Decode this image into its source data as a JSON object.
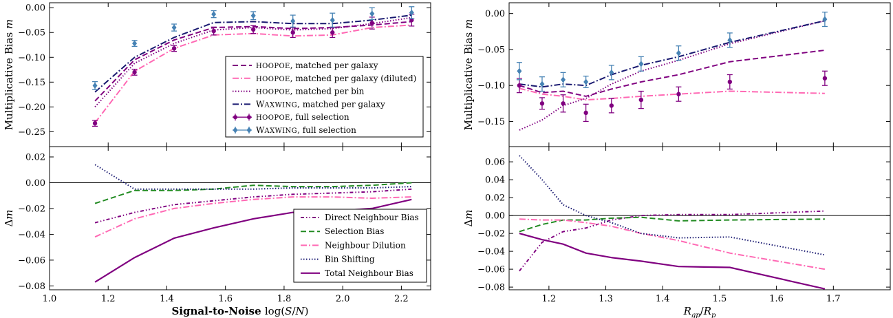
{
  "colors": {
    "dark_purple": "#800080",
    "pink": "#ff69b4",
    "green": "#228b22",
    "navy": "#191970",
    "steelblue": "#4682b4"
  },
  "chart_data": [
    {
      "type": "line",
      "panel": "top-left",
      "ylabel_text": "Multiplicative Bias ",
      "ylabel_var": "m",
      "xlim": [
        1.0,
        2.3
      ],
      "ylim": [
        -0.28,
        0.01
      ],
      "yticks": [
        0.0,
        -0.05,
        -0.1,
        -0.15,
        -0.2,
        -0.25
      ],
      "ytick_labels": [
        "0.00",
        "−0.05",
        "−0.10",
        "−0.15",
        "−0.20",
        "−0.25"
      ],
      "xticks": [
        1.0,
        1.2,
        1.4,
        1.6,
        1.8,
        2.0,
        2.2
      ],
      "legend_position": "right",
      "x": [
        1.155,
        1.29,
        1.425,
        1.56,
        1.695,
        1.83,
        1.965,
        2.1,
        2.235
      ],
      "series": [
        {
          "name": "HOOPOE, matched per galaxy",
          "name_sc": "hoopoe",
          "name_rest": ", matched per galaxy",
          "style": "dashed",
          "color": "#800080",
          "values": [
            -0.188,
            -0.105,
            -0.065,
            -0.04,
            -0.038,
            -0.042,
            -0.04,
            -0.035,
            -0.028
          ]
        },
        {
          "name": "HOOPOE, matched per galaxy (diluted)",
          "name_sc": "hoopoe",
          "name_rest": ", matched per galaxy (diluted)",
          "style": "dashdot",
          "color": "#ff69b4",
          "values": [
            -0.232,
            -0.128,
            -0.082,
            -0.055,
            -0.052,
            -0.057,
            -0.055,
            -0.04,
            -0.035
          ]
        },
        {
          "name": "HOOPOE, matched per bin",
          "name_sc": "hoopoe",
          "name_rest": ", matched per bin",
          "style": "dotted",
          "color": "#800080",
          "values": [
            -0.2,
            -0.112,
            -0.072,
            -0.045,
            -0.04,
            -0.045,
            -0.042,
            -0.032,
            -0.02
          ]
        },
        {
          "name": "WAXWING, matched per galaxy",
          "name_sc": "Waxwing",
          "name_rest": ", matched per galaxy",
          "style": "dashdot",
          "color": "#191970",
          "values": [
            -0.17,
            -0.1,
            -0.06,
            -0.03,
            -0.028,
            -0.032,
            -0.032,
            -0.025,
            -0.015
          ]
        },
        {
          "name": "HOOPOE, full selection",
          "name_sc": "hoopoe",
          "name_rest": ", full selection",
          "style": "errorbar",
          "marker": "circle",
          "color": "#800080",
          "values": [
            -0.233,
            -0.13,
            -0.082,
            -0.047,
            -0.044,
            -0.05,
            -0.05,
            -0.031,
            -0.025
          ],
          "errors": [
            0.006,
            0.006,
            0.006,
            0.008,
            0.008,
            0.01,
            0.01,
            0.012,
            0.012
          ]
        },
        {
          "name": "WAXWING, full selection",
          "name_sc": "Waxwing",
          "name_rest": ", full selection",
          "style": "errorbar",
          "marker": "diamond",
          "color": "#4682b4",
          "values": [
            -0.157,
            -0.072,
            -0.04,
            -0.013,
            -0.016,
            -0.027,
            -0.025,
            -0.012,
            -0.01
          ],
          "errors": [
            0.008,
            0.006,
            0.007,
            0.007,
            0.008,
            0.012,
            0.014,
            0.012,
            0.012
          ]
        }
      ]
    },
    {
      "type": "line",
      "panel": "bottom-left",
      "ylabel_text": "Δ",
      "ylabel_var": "m",
      "xlabel_text": "Signal-to-Noise ",
      "xlabel_math": "log(S/N)",
      "xlim": [
        1.0,
        2.3
      ],
      "ylim": [
        -0.083,
        0.028
      ],
      "yticks": [
        0.02,
        0.0,
        -0.02,
        -0.04,
        -0.06,
        -0.08
      ],
      "ytick_labels": [
        "0.02",
        "0.00",
        "−0.02",
        "−0.04",
        "−0.06",
        "−0.08"
      ],
      "xticks": [
        1.0,
        1.2,
        1.4,
        1.6,
        1.8,
        2.0,
        2.2
      ],
      "xtick_labels": [
        "1.0",
        "1.2",
        "1.4",
        "1.6",
        "1.8",
        "2.0",
        "2.2"
      ],
      "legend_position": "lower right",
      "x": [
        1.155,
        1.29,
        1.425,
        1.56,
        1.695,
        1.83,
        1.965,
        2.1,
        2.235
      ],
      "series": [
        {
          "name": "Direct Neighbour Bias",
          "style": "dashdotdot",
          "color": "#800080",
          "values": [
            -0.031,
            -0.023,
            -0.017,
            -0.014,
            -0.011,
            -0.009,
            -0.008,
            -0.007,
            -0.005
          ]
        },
        {
          "name": "Selection Bias",
          "style": "dashed",
          "color": "#228b22",
          "values": [
            -0.016,
            -0.006,
            -0.006,
            -0.005,
            -0.002,
            -0.003,
            -0.003,
            -0.002,
            0.0
          ]
        },
        {
          "name": "Neighbour Dilution",
          "style": "dashdot",
          "color": "#ff69b4",
          "values": [
            -0.042,
            -0.028,
            -0.02,
            -0.016,
            -0.013,
            -0.011,
            -0.011,
            -0.012,
            -0.011
          ]
        },
        {
          "name": "Bin Shifting",
          "style": "dotted",
          "color": "#191970",
          "values": [
            0.014,
            -0.005,
            -0.005,
            -0.005,
            -0.005,
            -0.004,
            -0.004,
            -0.004,
            -0.003
          ]
        },
        {
          "name": "Total Neighbour Bias",
          "style": "solid",
          "color": "#800080",
          "values": [
            -0.077,
            -0.058,
            -0.043,
            -0.035,
            -0.028,
            -0.023,
            -0.022,
            -0.02,
            -0.013
          ]
        }
      ]
    },
    {
      "type": "line",
      "panel": "top-right",
      "ylabel_text": "Multiplicative Bias ",
      "ylabel_var": "m",
      "xlim": [
        1.13,
        1.8
      ],
      "ylim": [
        -0.185,
        0.015
      ],
      "yticks": [
        0.0,
        -0.05,
        -0.1,
        -0.15
      ],
      "ytick_labels": [
        "0.00",
        "−0.05",
        "−0.10",
        "−0.15"
      ],
      "xticks": [
        1.2,
        1.3,
        1.4,
        1.5,
        1.6,
        1.7
      ],
      "x": [
        1.148,
        1.188,
        1.225,
        1.265,
        1.31,
        1.362,
        1.428,
        1.518,
        1.685
      ],
      "series": [
        {
          "style": "dashed",
          "color": "#800080",
          "values": [
            -0.1,
            -0.11,
            -0.108,
            -0.115,
            -0.105,
            -0.095,
            -0.085,
            -0.067,
            -0.051
          ]
        },
        {
          "style": "dashdot",
          "color": "#ff69b4",
          "values": [
            -0.104,
            -0.112,
            -0.115,
            -0.12,
            -0.118,
            -0.115,
            -0.112,
            -0.108,
            -0.111
          ]
        },
        {
          "style": "dotted",
          "color": "#800080",
          "values": [
            -0.162,
            -0.148,
            -0.128,
            -0.118,
            -0.098,
            -0.08,
            -0.065,
            -0.042,
            -0.01
          ]
        },
        {
          "style": "dashdot",
          "color": "#191970",
          "values": [
            -0.098,
            -0.102,
            -0.098,
            -0.1,
            -0.085,
            -0.072,
            -0.06,
            -0.04,
            -0.01
          ]
        },
        {
          "style": "errorbar",
          "marker": "circle",
          "color": "#800080",
          "values": [
            -0.1,
            -0.125,
            -0.125,
            -0.138,
            -0.128,
            -0.12,
            -0.112,
            -0.095,
            -0.09
          ],
          "errors": [
            0.01,
            0.008,
            0.012,
            0.012,
            0.01,
            0.012,
            0.01,
            0.01,
            0.01
          ]
        },
        {
          "style": "errorbar",
          "marker": "diamond",
          "color": "#4682b4",
          "values": [
            -0.08,
            -0.098,
            -0.092,
            -0.095,
            -0.082,
            -0.07,
            -0.055,
            -0.037,
            -0.008
          ],
          "errors": [
            0.012,
            0.01,
            0.01,
            0.008,
            0.01,
            0.01,
            0.01,
            0.01,
            0.01
          ]
        }
      ]
    },
    {
      "type": "line",
      "panel": "bottom-right",
      "ylabel_text": "Δ",
      "ylabel_var": "m",
      "xlabel_math": "R_gp/R_p",
      "xlim": [
        1.13,
        1.8
      ],
      "ylim": [
        -0.083,
        0.077
      ],
      "yticks": [
        0.06,
        0.04,
        0.02,
        0.0,
        -0.02,
        -0.04,
        -0.06,
        -0.08
      ],
      "ytick_labels": [
        "0.06",
        "0.04",
        "0.02",
        "0.00",
        "−0.02",
        "−0.04",
        "−0.06",
        "−0.08"
      ],
      "xticks": [
        1.2,
        1.3,
        1.4,
        1.5,
        1.6,
        1.7
      ],
      "xtick_labels": [
        "1.2",
        "1.3",
        "1.4",
        "1.5",
        "1.6",
        "1.7"
      ],
      "x": [
        1.148,
        1.188,
        1.225,
        1.265,
        1.31,
        1.362,
        1.428,
        1.518,
        1.685
      ],
      "series": [
        {
          "style": "dashdotdot",
          "color": "#800080",
          "values": [
            -0.062,
            -0.03,
            -0.018,
            -0.014,
            -0.005,
            0.0,
            0.001,
            0.001,
            0.005
          ]
        },
        {
          "style": "dashed",
          "color": "#228b22",
          "values": [
            -0.018,
            -0.01,
            -0.005,
            -0.005,
            -0.003,
            -0.002,
            -0.006,
            -0.005,
            -0.004
          ]
        },
        {
          "style": "dashdot",
          "color": "#ff69b4",
          "values": [
            -0.004,
            -0.005,
            -0.005,
            -0.008,
            -0.012,
            -0.02,
            -0.028,
            -0.042,
            -0.06
          ]
        },
        {
          "style": "dotted",
          "color": "#191970",
          "values": [
            0.067,
            0.04,
            0.012,
            0.0,
            -0.008,
            -0.02,
            -0.025,
            -0.024,
            -0.044
          ]
        },
        {
          "style": "solid",
          "color": "#800080",
          "values": [
            -0.02,
            -0.027,
            -0.032,
            -0.042,
            -0.047,
            -0.051,
            -0.057,
            -0.058,
            -0.082
          ]
        }
      ]
    }
  ]
}
